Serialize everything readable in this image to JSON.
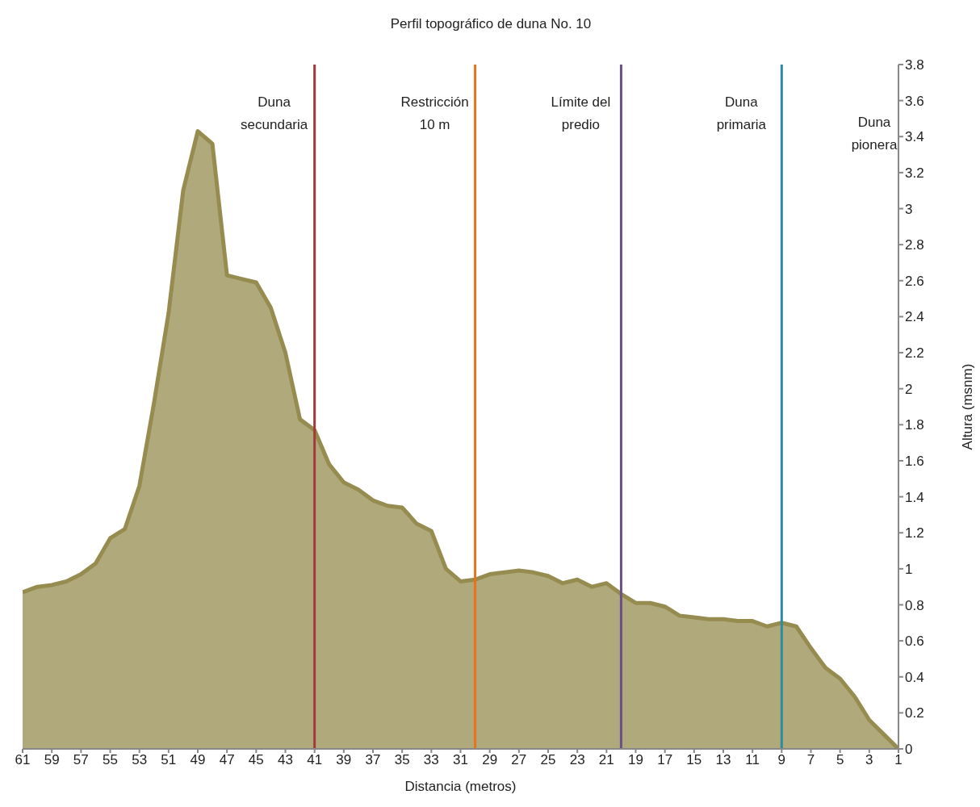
{
  "chart_data": {
    "type": "area",
    "title": "Perfil topográfico de duna No. 10",
    "xlabel": "Distancia (metros)",
    "ylabel": "Altura (msnm)",
    "x": [
      61,
      60,
      59,
      58,
      57,
      56,
      55,
      54,
      53,
      52,
      51,
      50,
      49,
      48,
      47,
      46,
      45,
      44,
      43,
      42,
      41,
      40,
      39,
      38,
      37,
      36,
      35,
      34,
      33,
      32,
      31,
      30,
      29,
      28,
      27,
      26,
      25,
      24,
      23,
      22,
      21,
      20,
      19,
      18,
      17,
      16,
      15,
      14,
      13,
      12,
      11,
      10,
      9,
      8,
      7,
      6,
      5,
      4,
      3,
      2,
      1
    ],
    "series": [
      {
        "color": "#968c50",
        "values": [
          0.87,
          0.9,
          0.91,
          0.93,
          0.97,
          1.03,
          1.17,
          1.22,
          1.46,
          1.92,
          2.42,
          3.1,
          3.43,
          3.36,
          2.63,
          2.61,
          2.59,
          2.45,
          2.2,
          1.83,
          1.77,
          1.58,
          1.48,
          1.44,
          1.38,
          1.35,
          1.34,
          1.25,
          1.21,
          1.0,
          0.93,
          0.94,
          0.97,
          0.98,
          0.99,
          0.98,
          0.96,
          0.92,
          0.94,
          0.9,
          0.92,
          0.86,
          0.81,
          0.81,
          0.79,
          0.74,
          0.73,
          0.72,
          0.72,
          0.71,
          0.71,
          0.68,
          0.7,
          0.68,
          0.56,
          0.45,
          0.39,
          0.29,
          0.16,
          0.08,
          0
        ]
      }
    ],
    "xlim": [
      61,
      1
    ],
    "xticks": [
      61,
      59,
      57,
      55,
      53,
      51,
      49,
      47,
      45,
      43,
      41,
      39,
      37,
      35,
      33,
      31,
      29,
      27,
      25,
      23,
      21,
      19,
      17,
      15,
      13,
      11,
      9,
      7,
      5,
      3,
      1
    ],
    "ylim": [
      0,
      3.8
    ],
    "yticks": [
      0,
      0.2,
      0.4,
      0.6,
      0.8,
      1,
      1.2,
      1.4,
      1.6,
      1.8,
      2,
      2.2,
      2.4,
      2.6,
      2.8,
      3,
      3.2,
      3.4,
      3.6,
      3.8
    ],
    "grid": false,
    "legend": false,
    "ref_lines": [
      {
        "axis": "x",
        "value": 41,
        "label": "Duna secundaria",
        "color": "#a33a3a"
      },
      {
        "axis": "x",
        "value": 30,
        "label": "Restricción 10 m",
        "color": "#e8731a"
      },
      {
        "axis": "x",
        "value": 20,
        "label": "Límite del predio",
        "color": "#6a4f8a"
      },
      {
        "axis": "x",
        "value": 9,
        "label": "Duna primaria",
        "color": "#2e8ba0"
      }
    ],
    "annotations": [
      "Duna pionera"
    ]
  }
}
